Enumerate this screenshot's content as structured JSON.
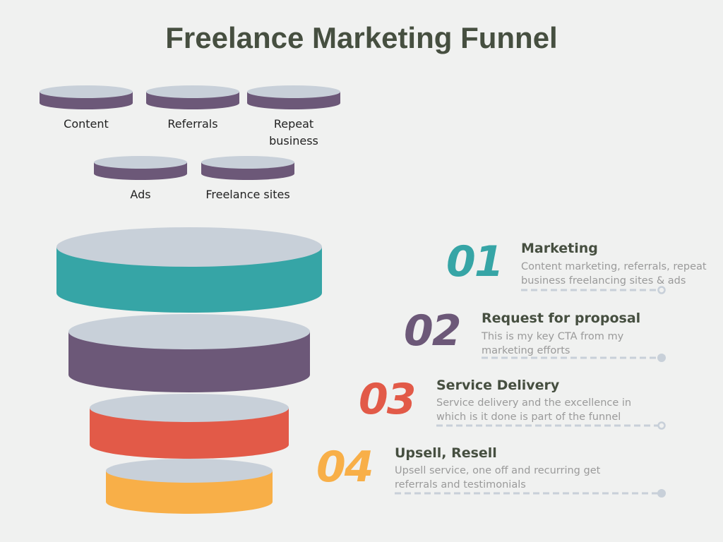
{
  "title": "Freelance Marketing Funnel",
  "sources": [
    {
      "label": "Content"
    },
    {
      "label": "Referrals"
    },
    {
      "label": "Repeat business"
    },
    {
      "label": "Ads"
    },
    {
      "label": "Freelance sites"
    }
  ],
  "colors": {
    "teal": "#36a5a6",
    "purple": "#6c5878",
    "red": "#e25a48",
    "orange": "#f8af48",
    "cap": "#c8d0d9",
    "heading": "#464f40"
  },
  "stages": [
    {
      "number": "01",
      "heading": "Marketing",
      "description": "Content marketing, referrals, repeat business freelancing sites & ads",
      "color": "#36a5a6",
      "marker": "hollow"
    },
    {
      "number": "02",
      "heading": "Request for proposal",
      "description": "This is my key CTA from my marketing efforts",
      "color": "#6c5878",
      "marker": "filled"
    },
    {
      "number": "03",
      "heading": "Service Delivery",
      "description": "Service delivery and the excellence in which is it done is part of the funnel",
      "color": "#e25a48",
      "marker": "hollow"
    },
    {
      "number": "04",
      "heading": "Upsell, Resell",
      "description": "Upsell service, one off and recurring get referrals and testimonials",
      "color": "#f8af48",
      "marker": "filled"
    }
  ]
}
